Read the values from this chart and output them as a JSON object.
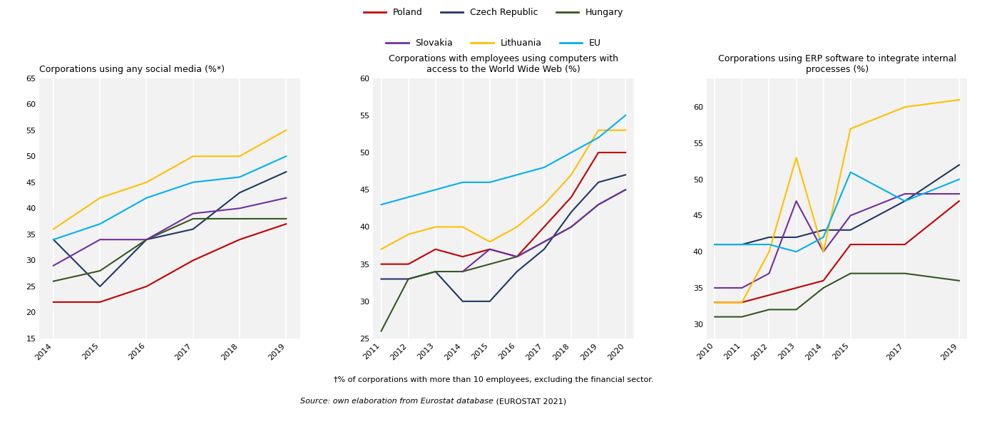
{
  "colors": {
    "Poland": "#C00000",
    "Czech Republic": "#1F3864",
    "Hungary": "#375623",
    "Slovakia": "#7030A0",
    "Lithuania": "#FFC000",
    "EU": "#00B0F0"
  },
  "legend_entries": [
    "Poland",
    "Czech Republic",
    "Hungary",
    "Slovakia",
    "Lithuania",
    "EU"
  ],
  "chart1": {
    "title": "Corporations using any social media (%*)",
    "years": [
      2014,
      2015,
      2016,
      2017,
      2018,
      2019
    ],
    "Poland": [
      22,
      22,
      25,
      30,
      34,
      37
    ],
    "Czech Republic": [
      34,
      25,
      34,
      36,
      43,
      47
    ],
    "Hungary": [
      26,
      28,
      34,
      38,
      38,
      38
    ],
    "Slovakia": [
      29,
      34,
      34,
      39,
      40,
      42
    ],
    "Lithuania": [
      36,
      42,
      45,
      50,
      50,
      55
    ],
    "EU": [
      34,
      37,
      42,
      45,
      46,
      50
    ],
    "ylim": [
      15,
      65
    ],
    "yticks": [
      15,
      20,
      25,
      30,
      35,
      40,
      45,
      50,
      55,
      60,
      65
    ]
  },
  "chart2": {
    "title": "Corporations with employees using computers with\naccess to the World Wide Web (%)",
    "years": [
      2011,
      2012,
      2013,
      2014,
      2015,
      2016,
      2017,
      2018,
      2019,
      2020
    ],
    "Poland": [
      35,
      35,
      37,
      36,
      37,
      36,
      40,
      44,
      50,
      50
    ],
    "Czech Republic": [
      33,
      33,
      34,
      30,
      30,
      34,
      37,
      42,
      46,
      47
    ],
    "Hungary": [
      26,
      33,
      34,
      34,
      35,
      36,
      38,
      40,
      43,
      45
    ],
    "Slovakia": [
      null,
      null,
      null,
      34,
      37,
      36,
      38,
      40,
      43,
      45
    ],
    "Lithuania": [
      37,
      39,
      40,
      40,
      38,
      40,
      43,
      47,
      53,
      53
    ],
    "EU": [
      43,
      44,
      45,
      46,
      46,
      47,
      48,
      50,
      52,
      55
    ],
    "ylim": [
      25,
      60
    ],
    "yticks": [
      25,
      30,
      35,
      40,
      45,
      50,
      55,
      60
    ]
  },
  "chart3": {
    "title": "Corporations using ERP software to integrate internal\nprocesses (%)",
    "years": [
      2010,
      2011,
      2012,
      2013,
      2014,
      2015,
      2017,
      2019
    ],
    "Poland": [
      33,
      33,
      34,
      35,
      36,
      41,
      41,
      47
    ],
    "Czech Republic": [
      41,
      41,
      42,
      42,
      43,
      43,
      47,
      52
    ],
    "Hungary": [
      31,
      31,
      32,
      32,
      35,
      37,
      37,
      36
    ],
    "Slovakia": [
      35,
      35,
      37,
      47,
      40,
      45,
      48,
      48
    ],
    "Lithuania": [
      33,
      33,
      40,
      53,
      40,
      57,
      60,
      61
    ],
    "EU": [
      41,
      41,
      41,
      40,
      42,
      51,
      47,
      50
    ],
    "ylim": [
      28,
      64
    ],
    "yticks": [
      30,
      35,
      40,
      45,
      50,
      55,
      60
    ]
  },
  "background_color": "#F2F2F2",
  "footnote": "†% of corporations with more than 10 employees, excluding the financial sector.",
  "source_italic": "Source: own elaboration from Eurostat database",
  "source_normal": " (EUROSTAT 2021)"
}
